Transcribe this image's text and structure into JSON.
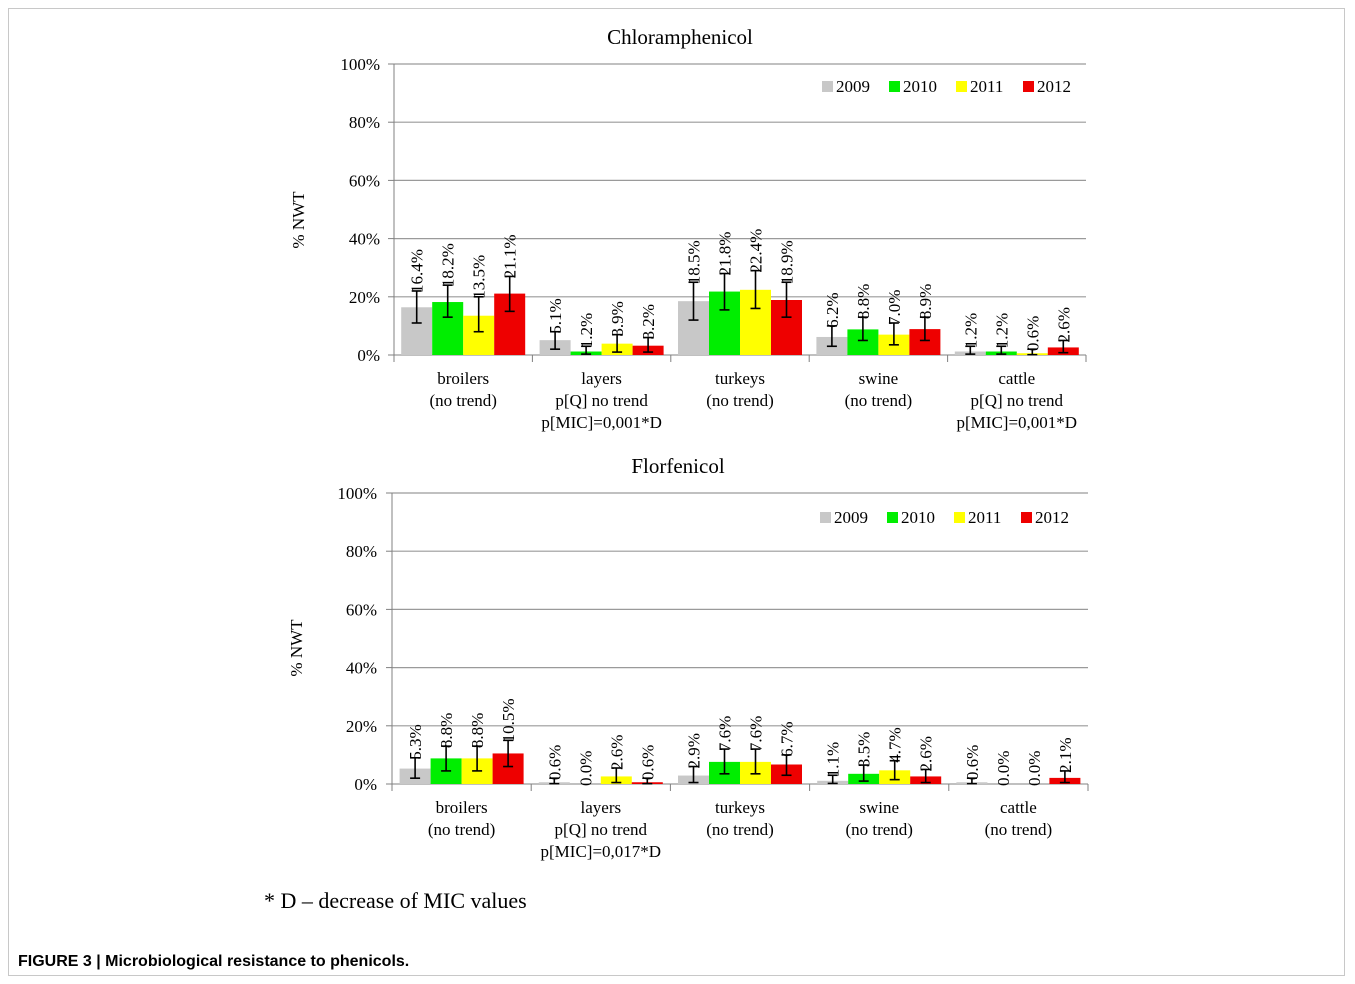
{
  "colors": {
    "2009": "#c8c8c8",
    "2010": "#00ee00",
    "2011": "#ffff00",
    "2012": "#ee0000",
    "gridline": "#9a9a9a",
    "axis": "#808080",
    "error_bar": "#000000"
  },
  "chart_data": [
    {
      "type": "bar",
      "title": "Chloramphenicol",
      "ylabel": "% NWT",
      "xlabel": "",
      "ylim": [
        0,
        100
      ],
      "yticks": [
        "0%",
        "20%",
        "40%",
        "60%",
        "80%",
        "100%"
      ],
      "grid": true,
      "legend_position": "top-right",
      "categories": [
        [
          "broilers",
          "(no trend)"
        ],
        [
          "layers",
          "p[Q] no trend",
          "p[MIC]=0,001*D"
        ],
        [
          "turkeys",
          "(no trend)"
        ],
        [
          "swine",
          "(no trend)"
        ],
        [
          "cattle",
          "p[Q] no trend",
          "p[MIC]=0,001*D"
        ]
      ],
      "series": [
        {
          "name": "2009",
          "values": [
            16.4,
            5.1,
            18.5,
            6.2,
            1.2
          ],
          "labels": [
            "16.4%",
            "5.1%",
            "18.5%",
            "6.2%",
            "1.2%"
          ],
          "err_low": [
            11,
            2,
            12,
            3,
            0.3
          ],
          "err_high": [
            22,
            8,
            25,
            10,
            3
          ]
        },
        {
          "name": "2010",
          "values": [
            18.2,
            1.2,
            21.8,
            8.8,
            1.2
          ],
          "labels": [
            "18.2%",
            "1.2%",
            "21.8%",
            "8.8%",
            "1.2%"
          ],
          "err_low": [
            13,
            0.3,
            15.5,
            5,
            0.3
          ],
          "err_high": [
            24,
            3,
            28,
            13,
            3
          ]
        },
        {
          "name": "2011",
          "values": [
            13.5,
            3.9,
            22.4,
            7.0,
            0.6
          ],
          "labels": [
            "13.5%",
            "3.9%",
            "22.4%",
            "7.0%",
            "0.6%"
          ],
          "err_low": [
            8,
            1,
            16,
            3.5,
            0.1
          ],
          "err_high": [
            20,
            7,
            29,
            11,
            2
          ]
        },
        {
          "name": "2012",
          "values": [
            21.1,
            3.2,
            18.9,
            8.9,
            2.6
          ],
          "labels": [
            "21.1%",
            "3.2%",
            "18.9%",
            "8.9%",
            "2.6%"
          ],
          "err_low": [
            15,
            1,
            13,
            5,
            0.8
          ],
          "err_high": [
            27,
            6,
            25,
            13,
            5
          ]
        }
      ]
    },
    {
      "type": "bar",
      "title": "Florfenicol",
      "ylabel": "% NWT",
      "xlabel": "",
      "ylim": [
        0,
        100
      ],
      "yticks": [
        "0%",
        "20%",
        "40%",
        "60%",
        "80%",
        "100%"
      ],
      "grid": true,
      "legend_position": "top-right",
      "categories": [
        [
          "broilers",
          "(no trend)"
        ],
        [
          "layers",
          "p[Q] no trend",
          "p[MIC]=0,017*D"
        ],
        [
          "turkeys",
          "(no trend)"
        ],
        [
          "swine",
          "(no trend)"
        ],
        [
          "cattle",
          "(no trend)"
        ]
      ],
      "series": [
        {
          "name": "2009",
          "values": [
            5.3,
            0.6,
            2.9,
            1.1,
            0.6
          ],
          "labels": [
            "5.3%",
            "0.6%",
            "2.9%",
            "1.1%",
            "0.6%"
          ],
          "err_low": [
            2,
            0.1,
            0.5,
            0.2,
            0.1
          ],
          "err_high": [
            9,
            2,
            6,
            3,
            2
          ]
        },
        {
          "name": "2010",
          "values": [
            8.8,
            0.0,
            7.6,
            3.5,
            0.0
          ],
          "labels": [
            "8.8%",
            "0.0%",
            "7.6%",
            "3.5%",
            "0.0%"
          ],
          "err_low": [
            4.5,
            null,
            3.5,
            1,
            null
          ],
          "err_high": [
            13,
            null,
            12,
            6.5,
            null
          ]
        },
        {
          "name": "2011",
          "values": [
            8.8,
            2.6,
            7.6,
            4.7,
            0.0
          ],
          "labels": [
            "8.8%",
            "2.6%",
            "7.6%",
            "4.7%",
            "0.0%"
          ],
          "err_low": [
            4.5,
            0.5,
            3.5,
            1.5,
            null
          ],
          "err_high": [
            13,
            5.5,
            12,
            8,
            null
          ]
        },
        {
          "name": "2012",
          "values": [
            10.5,
            0.6,
            6.7,
            2.6,
            2.1
          ],
          "labels": [
            "10.5%",
            "0.6%",
            "6.7%",
            "2.6%",
            "2.1%"
          ],
          "err_low": [
            6,
            0.1,
            3,
            0.5,
            0.5
          ],
          "err_high": [
            15,
            2,
            10,
            5,
            4.5
          ]
        }
      ]
    }
  ],
  "footnote": "* D – decrease of MIC values",
  "caption": "FIGURE 3 | Microbiological resistance to phenicols."
}
